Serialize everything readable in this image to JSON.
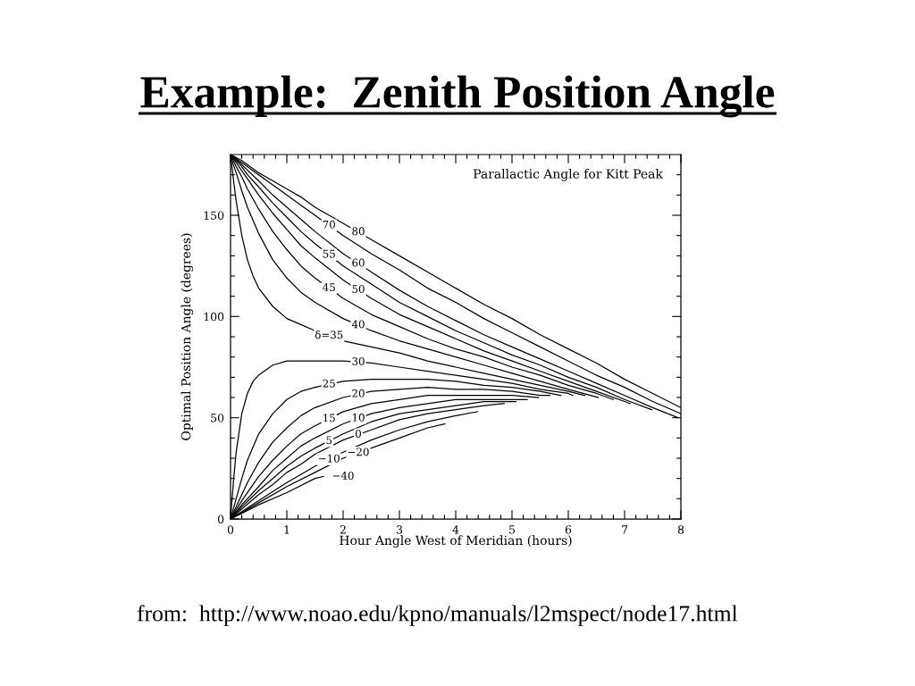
{
  "chart_data": {
    "type": "line",
    "title": "Example:  Zenith Position Angle",
    "subtitle": "Parallactic Angle for Kitt Peak",
    "xlabel": "Hour Angle West of Meridian (hours)",
    "ylabel": "Optimal Position Angle (degrees)",
    "xlim": [
      0,
      8
    ],
    "ylim": [
      0,
      180
    ],
    "xticks": [
      0,
      {
        "value": 0.2,
        "label": null
      },
      {
        "value": 0.4,
        "label": null
      },
      {
        "value": 0.6,
        "label": null
      },
      {
        "value": 0.8,
        "label": null
      },
      1,
      {
        "value": 1.2,
        "label": null
      },
      {
        "value": 1.4,
        "label": null
      },
      {
        "value": 1.6,
        "label": null
      },
      {
        "value": 1.8,
        "label": null
      },
      2,
      {
        "value": 2.2,
        "label": null
      },
      {
        "value": 2.4,
        "label": null
      },
      {
        "value": 2.6,
        "label": null
      },
      {
        "value": 2.8,
        "label": null
      },
      3,
      {
        "value": 3.2,
        "label": null
      },
      {
        "value": 3.4,
        "label": null
      },
      {
        "value": 3.6,
        "label": null
      },
      {
        "value": 3.8,
        "label": null
      },
      4,
      {
        "value": 4.2,
        "label": null
      },
      {
        "value": 4.4,
        "label": null
      },
      {
        "value": 4.6,
        "label": null
      },
      {
        "value": 4.8,
        "label": null
      },
      5,
      {
        "value": 5.2,
        "label": null
      },
      {
        "value": 5.4,
        "label": null
      },
      {
        "value": 5.6,
        "label": null
      },
      {
        "value": 5.8,
        "label": null
      },
      6,
      {
        "value": 6.2,
        "label": null
      },
      {
        "value": 6.4,
        "label": null
      },
      {
        "value": 6.6,
        "label": null
      },
      {
        "value": 6.8,
        "label": null
      },
      7,
      {
        "value": 7.2,
        "label": null
      },
      {
        "value": 7.4,
        "label": null
      },
      {
        "value": 7.6,
        "label": null
      },
      {
        "value": 7.8,
        "label": null
      },
      8
    ],
    "yticks": [
      0,
      {
        "value": 10,
        "label": null
      },
      {
        "value": 20,
        "label": null
      },
      {
        "value": 30,
        "label": null
      },
      {
        "value": 40,
        "label": null
      },
      50,
      {
        "value": 60,
        "label": null
      },
      {
        "value": 70,
        "label": null
      },
      {
        "value": 80,
        "label": null
      },
      {
        "value": 90,
        "label": null
      },
      100,
      {
        "value": 110,
        "label": null
      },
      {
        "value": 120,
        "label": null
      },
      {
        "value": 130,
        "label": null
      },
      {
        "value": 140,
        "label": null
      },
      150,
      {
        "value": 160,
        "label": null
      },
      {
        "value": 170,
        "label": null
      }
    ],
    "grid": false,
    "legend": false,
    "marker": "none",
    "line_style": "solid",
    "annotations": [
      "from:  http://www.noao.edu/kpno/manuals/l2mspect/node17.html"
    ],
    "series": [
      {
        "name": "80",
        "color": "#000000",
        "x": [
          0,
          0.2,
          0.5,
          0.75,
          1,
          1.25,
          1.5,
          2,
          2.5,
          3,
          3.5,
          4,
          4.5,
          5,
          5.5,
          6,
          6.5,
          7,
          7.5,
          8
        ],
        "values": [
          180,
          177,
          171,
          167,
          163,
          159,
          154,
          146,
          138,
          130,
          122,
          114,
          106,
          99,
          91,
          84,
          77,
          69,
          62,
          55
        ]
      },
      {
        "name": "70",
        "color": "#000000",
        "x": [
          0,
          0.2,
          0.5,
          0.75,
          1,
          1.25,
          1.5,
          2,
          2.5,
          3,
          3.5,
          4,
          4.5,
          5,
          5.5,
          6,
          6.5,
          7,
          7.5,
          8
        ],
        "values": [
          180,
          176,
          170,
          165,
          160,
          155,
          150,
          140,
          131,
          123,
          114,
          107,
          99,
          92,
          85,
          78,
          71,
          65,
          58,
          52
        ]
      },
      {
        "name": "60",
        "color": "#000000",
        "x": [
          0,
          0.2,
          0.5,
          0.75,
          1,
          1.25,
          1.5,
          2,
          2.5,
          3,
          3.5,
          4,
          4.5,
          5,
          5.5,
          6,
          6.5,
          7,
          7.5,
          7.95
        ],
        "values": [
          180,
          175,
          167,
          160,
          154,
          148,
          142,
          131,
          122,
          113,
          105,
          98,
          91,
          85,
          79,
          73,
          67,
          61,
          55,
          50
        ]
      },
      {
        "name": "55",
        "color": "#000000",
        "x": [
          0,
          0.1,
          0.2,
          0.3,
          0.5,
          0.75,
          1,
          1.25,
          1.5,
          2,
          2.5,
          3,
          3.5,
          4,
          4.5,
          5,
          5.5,
          6,
          6.5,
          7,
          7.48
        ],
        "values": [
          180,
          177,
          174,
          170,
          164,
          156,
          149,
          142,
          136,
          125,
          116,
          107,
          100,
          93,
          87,
          81,
          76,
          70,
          65,
          59,
          54
        ]
      },
      {
        "name": "50",
        "color": "#000000",
        "x": [
          0,
          0.1,
          0.2,
          0.3,
          0.5,
          0.75,
          1,
          1.25,
          1.5,
          2,
          2.5,
          3,
          3.5,
          4,
          4.5,
          5,
          5.5,
          6,
          6.5,
          7,
          7.1
        ],
        "values": [
          180,
          176,
          172,
          168,
          160,
          151,
          143,
          135,
          129,
          118,
          109,
          101,
          95,
          89,
          83,
          78,
          73,
          68,
          63,
          58,
          57
        ]
      },
      {
        "name": "45",
        "color": "#000000",
        "x": [
          0,
          0.05,
          0.1,
          0.2,
          0.3,
          0.5,
          0.75,
          1,
          1.25,
          1.5,
          2,
          2.5,
          3,
          3.5,
          4,
          4.5,
          5,
          5.5,
          6,
          6.5,
          6.8
        ],
        "values": [
          180,
          177,
          174,
          169,
          163,
          153,
          142,
          133,
          125,
          119,
          109,
          101,
          95,
          89,
          84,
          80,
          75,
          71,
          66,
          62,
          59
        ]
      },
      {
        "name": "40",
        "color": "#000000",
        "x": [
          0,
          0.05,
          0.1,
          0.2,
          0.3,
          0.5,
          0.75,
          1,
          1.25,
          1.5,
          2,
          2.5,
          3,
          3.5,
          4,
          4.5,
          5,
          5.5,
          6,
          6.53
        ],
        "values": [
          180,
          175,
          171,
          162,
          154,
          141,
          128,
          119,
          112,
          107,
          99,
          93,
          88,
          84,
          80,
          76,
          72,
          68,
          64,
          60
        ]
      },
      {
        "name": "δ=35",
        "color": "#000000",
        "x": [
          0,
          0.05,
          0.1,
          0.2,
          0.3,
          0.4,
          0.5,
          0.75,
          1,
          1.25,
          1.5,
          2,
          2.5,
          3,
          3.5,
          4,
          4.5,
          5,
          5.5,
          6,
          6.29
        ],
        "values": [
          180,
          168,
          157,
          140,
          128,
          120,
          114,
          105,
          99,
          96,
          93,
          88,
          85,
          82,
          78,
          75,
          72,
          69,
          66,
          63,
          61
        ]
      },
      {
        "name": "30",
        "color": "#000000",
        "x": [
          0,
          0.05,
          0.1,
          0.2,
          0.3,
          0.4,
          0.5,
          0.75,
          1,
          1.25,
          1.5,
          2,
          2.5,
          3,
          3.5,
          4,
          4.5,
          5,
          5.5,
          6,
          6.08
        ],
        "values": [
          0,
          18,
          33,
          52,
          62,
          68,
          71,
          76,
          78,
          78,
          78,
          78,
          77,
          75,
          73,
          71,
          69,
          67,
          64,
          62,
          61
        ]
      },
      {
        "name": "25",
        "color": "#000000",
        "x": [
          0,
          0.1,
          0.2,
          0.3,
          0.5,
          0.75,
          1,
          1.25,
          1.5,
          2,
          2.5,
          3,
          3.5,
          4,
          4.5,
          5,
          5.5,
          5.87
        ],
        "values": [
          0,
          10,
          20,
          29,
          42,
          52,
          59,
          63,
          65,
          68,
          69,
          69,
          69,
          68,
          66,
          65,
          63,
          61
        ]
      },
      {
        "name": "20",
        "color": "#000000",
        "x": [
          0,
          0.2,
          0.3,
          0.5,
          0.75,
          1,
          1.25,
          1.5,
          2,
          2.5,
          3,
          3.5,
          4,
          4.5,
          5,
          5.5,
          5.67
        ],
        "values": [
          0,
          12,
          18,
          28,
          38,
          45,
          51,
          55,
          60,
          63,
          64,
          65,
          64,
          64,
          63,
          61,
          61
        ]
      },
      {
        "name": "15",
        "color": "#000000",
        "x": [
          0,
          0.2,
          0.5,
          0.75,
          1,
          1.25,
          1.5,
          2,
          2.5,
          3,
          3.5,
          4,
          4.5,
          5,
          5.47
        ],
        "values": [
          0,
          9,
          21,
          29,
          36,
          42,
          46,
          53,
          57,
          59,
          61,
          61,
          61,
          61,
          60
        ]
      },
      {
        "name": "10",
        "color": "#000000",
        "x": [
          0,
          0.2,
          0.5,
          0.75,
          1,
          1.25,
          1.5,
          2,
          2.5,
          3,
          3.5,
          4,
          4.5,
          5,
          5.27
        ],
        "values": [
          0,
          7,
          16,
          24,
          30,
          36,
          40,
          47,
          52,
          55,
          57,
          59,
          59,
          59,
          59
        ]
      },
      {
        "name": "5",
        "color": "#000000",
        "x": [
          0,
          0.2,
          0.5,
          0.75,
          1,
          1.25,
          1.5,
          2,
          2.5,
          3,
          3.5,
          4,
          4.5,
          5.07
        ],
        "values": [
          0,
          6,
          14,
          20,
          26,
          31,
          35,
          42,
          48,
          52,
          54,
          56,
          58,
          58
        ]
      },
      {
        "name": "0",
        "color": "#000000",
        "x": [
          0,
          0.2,
          0.5,
          0.75,
          1,
          1.25,
          1.5,
          2,
          2.5,
          3,
          3.5,
          4,
          4.5,
          4.86
        ],
        "values": [
          0,
          5,
          12,
          17,
          23,
          27,
          32,
          39,
          44,
          49,
          52,
          54,
          56,
          57
        ]
      },
      {
        "name": "−10",
        "color": "#000000",
        "x": [
          0,
          0.5,
          1,
          1.5,
          2,
          2.5,
          3,
          3.5,
          4,
          4.39
        ],
        "values": [
          0,
          9,
          18,
          26,
          33,
          39,
          44,
          48,
          51,
          53
        ]
      },
      {
        "name": "−20",
        "color": "#000000",
        "x": [
          0,
          0.5,
          1,
          1.5,
          2,
          2.5,
          3,
          3.5,
          3.81
        ],
        "values": [
          0,
          8,
          16,
          23,
          30,
          35,
          40,
          45,
          47
        ]
      },
      {
        "name": "−40",
        "color": "#000000",
        "x": [
          0,
          0.5,
          1,
          1.5,
          1.65
        ],
        "values": [
          0,
          7,
          13,
          20,
          21
        ]
      }
    ]
  }
}
